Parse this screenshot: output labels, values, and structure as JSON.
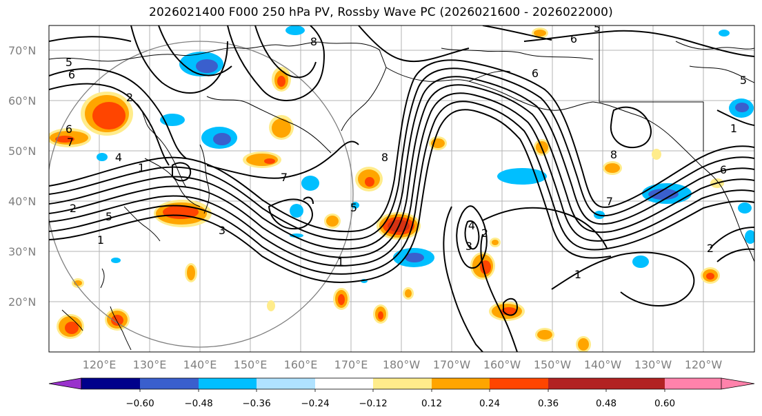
{
  "title": "2026021400 F000 250 hPa PV, Rossby Wave PC (2026021600 - 2026022000)",
  "lat_labels": [
    "70°N",
    "60°N",
    "50°N",
    "40°N",
    "30°N",
    "20°N"
  ],
  "lon_labels": [
    "120°E",
    "130°E",
    "140°E",
    "150°E",
    "160°E",
    "170°E",
    "180°W",
    "170°W",
    "160°W",
    "150°W",
    "140°W",
    "130°W",
    "120°W"
  ],
  "contour_labels": {
    "c1": "5",
    "c2": "6",
    "c3": "8",
    "c4": "5",
    "c5": "6",
    "c6": "6",
    "c7": "5",
    "c8": "6",
    "c9": "7",
    "c10": "2",
    "c11": "4",
    "c12": "1",
    "c13": "2",
    "c14": "5",
    "c15": "1",
    "c16": "7",
    "c17": "5",
    "c18": "3",
    "c19": "1",
    "c20": "8",
    "c21": "4",
    "c22": "3",
    "c23": "2",
    "c24": "7",
    "c25": "8",
    "c26": "1",
    "c27": "1",
    "c28": "6",
    "c29": "2"
  },
  "colorbar": {
    "labels": [
      "−0.60",
      "−0.48",
      "−0.36",
      "−0.24",
      "−0.12",
      "0.12",
      "0.24",
      "0.36",
      "0.48",
      "0.60"
    ],
    "colors": [
      "#9932cc",
      "#00008b",
      "#3a5fcd",
      "#00bfff",
      "#b0e2ff",
      "#ffffff",
      "#ffec8b",
      "#ffa500",
      "#ff4500",
      "#b22222",
      "#ff82ab"
    ]
  }
}
